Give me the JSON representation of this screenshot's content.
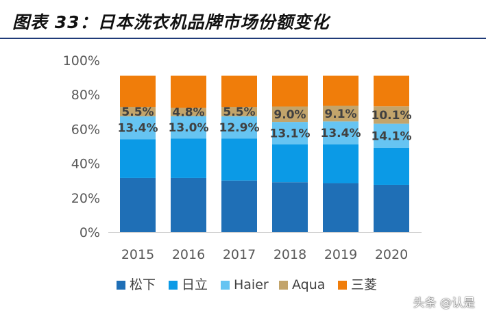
{
  "title": "图表 33：日本洗衣机品牌市场份额变化",
  "watermark": "头条 @认是",
  "chart_data": {
    "type": "bar",
    "stacked": true,
    "categories": [
      "2015",
      "2016",
      "2017",
      "2018",
      "2019",
      "2020"
    ],
    "ylim": [
      0,
      100
    ],
    "yticks": [
      "0%",
      "20%",
      "40%",
      "60%",
      "80%",
      "100%"
    ],
    "legend_position": "bottom",
    "series": [
      {
        "name": "松下",
        "color": "#1f6fb6",
        "values": [
          31.5,
          31.5,
          30,
          29,
          28.5,
          27.5
        ]
      },
      {
        "name": "日立",
        "color": "#0b9ae6",
        "values": [
          22.5,
          23,
          24.5,
          22,
          22.5,
          21.5
        ]
      },
      {
        "name": "Haier",
        "color": "#66c4f2",
        "values": [
          13.4,
          13.0,
          12.9,
          13.1,
          13.4,
          14.1
        ],
        "labels": [
          "13.4%",
          "13.0%",
          "12.9%",
          "13.1%",
          "13.4%",
          "14.1%"
        ]
      },
      {
        "name": "Aqua",
        "color": "#c2a46b",
        "values": [
          5.5,
          4.8,
          5.5,
          9.0,
          9.1,
          10.1
        ],
        "labels": [
          "5.5%",
          "4.8%",
          "5.5%",
          "9.0%",
          "9.1%",
          "10.1%"
        ]
      },
      {
        "name": "三菱",
        "color": "#f07d0a",
        "values": [
          18.1,
          18.7,
          18.1,
          17.9,
          17.5,
          17.8
        ]
      }
    ]
  }
}
